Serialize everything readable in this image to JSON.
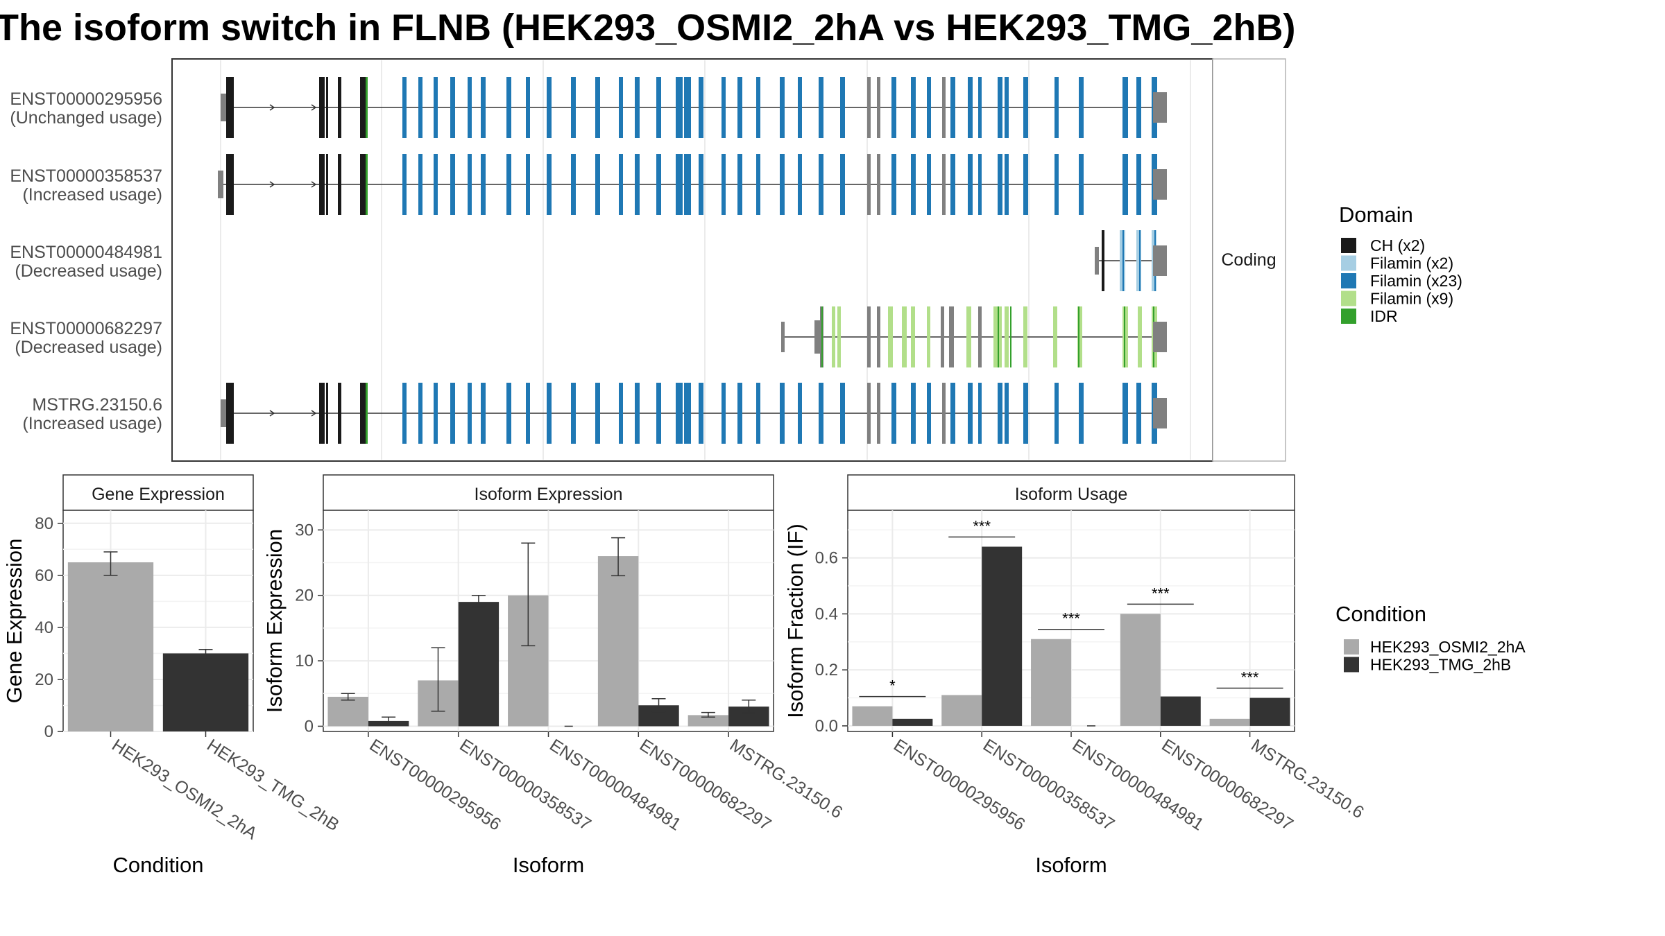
{
  "title": "The isoform switch in FLNB (HEK293_OSMI2_2hA vs HEK293_TMG_2hB)",
  "colors": {
    "ch": "#1a1a1a",
    "filamin_light": "#a6cee3",
    "filamin_mid": "#1f78b4",
    "filamin_green": "#b2df8a",
    "idr": "#33a02c",
    "noncoding": "#808080",
    "cond1": "#aaaaaa",
    "cond2": "#333333"
  },
  "structure": {
    "strip_label": "Coding",
    "domain_legend": {
      "title": "Domain",
      "items": [
        {
          "label": "CH (x2)",
          "color": "#1a1a1a"
        },
        {
          "label": "Filamin (x2)",
          "color": "#a6cee3"
        },
        {
          "label": "Filamin (x23)",
          "color": "#1f78b4"
        },
        {
          "label": "Filamin (x9)",
          "color": "#b2df8a"
        },
        {
          "label": "IDR",
          "color": "#33a02c"
        }
      ]
    },
    "isoforms": [
      {
        "id": "ENST00000295956",
        "usage": "(Unchanged usage)"
      },
      {
        "id": "ENST00000358537",
        "usage": "(Increased usage)"
      },
      {
        "id": "ENST00000484981",
        "usage": "(Decreased usage)"
      },
      {
        "id": "ENST00000682297",
        "usage": "(Decreased usage)"
      },
      {
        "id": "MSTRG.23150.6",
        "usage": "(Increased usage)"
      }
    ]
  },
  "chart_data": [
    {
      "type": "bar",
      "title": "Gene Expression",
      "xlabel": "Condition",
      "ylabel": "Gene Expression",
      "categories": [
        "HEK293_OSMI2_2hA",
        "HEK293_TMG_2hB"
      ],
      "values": [
        65,
        30
      ],
      "error_low": [
        60,
        28
      ],
      "error_high": [
        69,
        31.5
      ],
      "ylim": [
        0,
        85
      ],
      "yticks": [
        "0",
        "20",
        "40",
        "60",
        "80"
      ],
      "ytick_values": [
        0,
        20,
        40,
        60,
        80
      ]
    },
    {
      "type": "bar",
      "title": "Isoform Expression",
      "xlabel": "Isoform",
      "ylabel": "Isoform Expression",
      "categories": [
        "ENST00000295956",
        "ENST00000358537",
        "ENST00000484981",
        "ENST00000682297",
        "MSTRG.23150.6"
      ],
      "series": [
        {
          "name": "HEK293_OSMI2_2hA",
          "values": [
            4.5,
            7,
            20,
            26,
            1.7
          ],
          "error_low": [
            4,
            2.3,
            12.3,
            23,
            1.4
          ],
          "error_high": [
            5,
            12,
            28,
            28.8,
            2.1
          ]
        },
        {
          "name": "HEK293_TMG_2hB",
          "values": [
            0.8,
            19,
            0,
            3.2,
            3
          ],
          "error_low": [
            0.3,
            18.2,
            0,
            2.2,
            2
          ],
          "error_high": [
            1.4,
            20,
            0,
            4.2,
            4
          ]
        }
      ],
      "ylim": [
        -0.8,
        33
      ],
      "yticks": [
        "0",
        "10",
        "20",
        "30"
      ],
      "ytick_values": [
        0,
        10,
        20,
        30
      ]
    },
    {
      "type": "bar",
      "title": "Isoform Usage",
      "xlabel": "Isoform",
      "ylabel": "Isoform Fraction (IF)",
      "categories": [
        "ENST00000295956",
        "ENST00000358537",
        "ENST00000484981",
        "ENST00000682297",
        "MSTRG.23150.6"
      ],
      "series": [
        {
          "name": "HEK293_OSMI2_2hA",
          "values": [
            0.07,
            0.11,
            0.31,
            0.4,
            0.025
          ]
        },
        {
          "name": "HEK293_TMG_2hB",
          "values": [
            0.025,
            0.64,
            0.0,
            0.105,
            0.1
          ]
        }
      ],
      "significance": [
        "*",
        "***",
        "***",
        "***",
        "***"
      ],
      "ylim": [
        -0.02,
        0.77
      ],
      "yticks": [
        "0.0",
        "0.2",
        "0.4",
        "0.6"
      ],
      "ytick_values": [
        0,
        0.2,
        0.4,
        0.6
      ]
    }
  ],
  "condition_legend": {
    "title": "Condition",
    "items": [
      {
        "label": "HEK293_OSMI2_2hA",
        "color": "#aaaaaa"
      },
      {
        "label": "HEK293_TMG_2hB",
        "color": "#333333"
      }
    ]
  }
}
